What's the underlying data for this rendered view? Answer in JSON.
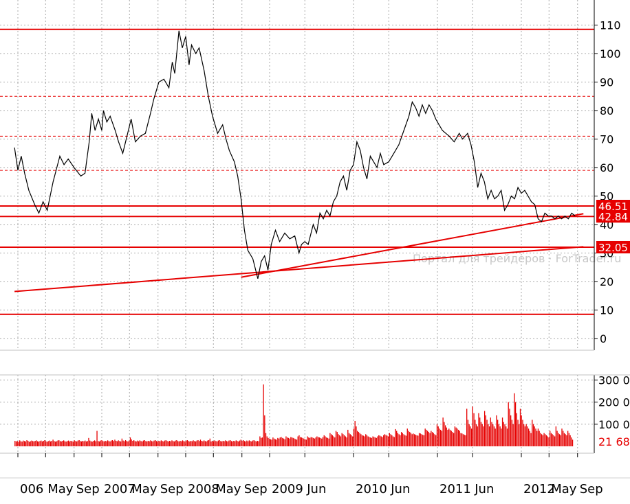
{
  "chart_data": {
    "type": "line",
    "title": "",
    "xlabel": "",
    "ylabel": "",
    "ylim": [
      -2,
      114
    ],
    "yticks": [
      0,
      10,
      20,
      30,
      40,
      50,
      60,
      70,
      80,
      90,
      100,
      110
    ],
    "x_tick_labels": [
      {
        "t": 0.0,
        "label": "006"
      },
      {
        "t": 0.33,
        "label": "May"
      },
      {
        "t": 0.67,
        "label": "Sep"
      },
      {
        "t": 1.0,
        "label": "2007"
      },
      {
        "t": 1.33,
        "label": "May"
      },
      {
        "t": 1.67,
        "label": "Sep"
      },
      {
        "t": 2.0,
        "label": "2008"
      },
      {
        "t": 2.33,
        "label": "May"
      },
      {
        "t": 2.67,
        "label": "Sep"
      },
      {
        "t": 3.0,
        "label": "2009"
      },
      {
        "t": 3.42,
        "label": "Jun"
      },
      {
        "t": 4.0,
        "label": "2010"
      },
      {
        "t": 4.42,
        "label": "Jun"
      },
      {
        "t": 5.0,
        "label": "2011"
      },
      {
        "t": 5.42,
        "label": "Jun"
      },
      {
        "t": 6.0,
        "label": "2012"
      },
      {
        "t": 6.33,
        "label": "May"
      },
      {
        "t": 6.67,
        "label": "Sep"
      }
    ],
    "price_series": {
      "name": "",
      "points": [
        [
          -0.04,
          67
        ],
        [
          0.0,
          59
        ],
        [
          0.04,
          64
        ],
        [
          0.08,
          58
        ],
        [
          0.13,
          52
        ],
        [
          0.2,
          47
        ],
        [
          0.25,
          44
        ],
        [
          0.3,
          48
        ],
        [
          0.35,
          45
        ],
        [
          0.42,
          55
        ],
        [
          0.5,
          64
        ],
        [
          0.55,
          61
        ],
        [
          0.6,
          63
        ],
        [
          0.67,
          60
        ],
        [
          0.75,
          57
        ],
        [
          0.8,
          58
        ],
        [
          0.85,
          69
        ],
        [
          0.88,
          79
        ],
        [
          0.92,
          73
        ],
        [
          0.96,
          77
        ],
        [
          1.0,
          73
        ],
        [
          1.02,
          80
        ],
        [
          1.06,
          76
        ],
        [
          1.1,
          78
        ],
        [
          1.16,
          73
        ],
        [
          1.2,
          69
        ],
        [
          1.25,
          65
        ],
        [
          1.3,
          71
        ],
        [
          1.35,
          77
        ],
        [
          1.4,
          69
        ],
        [
          1.46,
          71
        ],
        [
          1.52,
          72
        ],
        [
          1.58,
          79
        ],
        [
          1.62,
          84
        ],
        [
          1.68,
          90
        ],
        [
          1.74,
          91
        ],
        [
          1.8,
          88
        ],
        [
          1.84,
          97
        ],
        [
          1.87,
          93
        ],
        [
          1.92,
          108
        ],
        [
          1.96,
          102
        ],
        [
          2.0,
          106
        ],
        [
          2.04,
          96
        ],
        [
          2.07,
          103
        ],
        [
          2.12,
          100
        ],
        [
          2.16,
          102
        ],
        [
          2.22,
          94
        ],
        [
          2.27,
          85
        ],
        [
          2.32,
          78
        ],
        [
          2.38,
          72
        ],
        [
          2.44,
          75
        ],
        [
          2.48,
          70
        ],
        [
          2.52,
          66
        ],
        [
          2.58,
          62
        ],
        [
          2.62,
          57
        ],
        [
          2.66,
          49
        ],
        [
          2.7,
          38
        ],
        [
          2.74,
          31
        ],
        [
          2.8,
          28
        ],
        [
          2.86,
          21
        ],
        [
          2.9,
          27
        ],
        [
          2.94,
          29
        ],
        [
          2.98,
          24
        ],
        [
          3.02,
          33
        ],
        [
          3.07,
          38
        ],
        [
          3.12,
          34
        ],
        [
          3.18,
          37
        ],
        [
          3.24,
          35
        ],
        [
          3.3,
          36
        ],
        [
          3.35,
          30
        ],
        [
          3.38,
          33
        ],
        [
          3.42,
          34
        ],
        [
          3.46,
          33
        ],
        [
          3.52,
          40
        ],
        [
          3.56,
          37
        ],
        [
          3.6,
          44
        ],
        [
          3.64,
          42
        ],
        [
          3.68,
          45
        ],
        [
          3.72,
          43
        ],
        [
          3.76,
          48
        ],
        [
          3.8,
          50
        ],
        [
          3.84,
          55
        ],
        [
          3.88,
          57
        ],
        [
          3.92,
          52
        ],
        [
          3.96,
          59
        ],
        [
          4.0,
          61
        ],
        [
          4.04,
          69
        ],
        [
          4.08,
          66
        ],
        [
          4.12,
          60
        ],
        [
          4.16,
          56
        ],
        [
          4.2,
          64
        ],
        [
          4.24,
          62
        ],
        [
          4.28,
          60
        ],
        [
          4.32,
          65
        ],
        [
          4.36,
          61
        ],
        [
          4.42,
          62
        ],
        [
          4.48,
          65
        ],
        [
          4.54,
          68
        ],
        [
          4.6,
          73
        ],
        [
          4.66,
          78
        ],
        [
          4.7,
          83
        ],
        [
          4.74,
          81
        ],
        [
          4.78,
          78
        ],
        [
          4.82,
          82
        ],
        [
          4.86,
          79
        ],
        [
          4.9,
          82
        ],
        [
          4.94,
          80
        ],
        [
          4.98,
          77
        ],
        [
          5.02,
          75
        ],
        [
          5.06,
          73
        ],
        [
          5.1,
          72
        ],
        [
          5.14,
          71
        ],
        [
          5.2,
          69
        ],
        [
          5.26,
          72
        ],
        [
          5.3,
          70
        ],
        [
          5.36,
          72
        ],
        [
          5.4,
          68
        ],
        [
          5.44,
          62
        ],
        [
          5.48,
          53
        ],
        [
          5.52,
          58
        ],
        [
          5.56,
          55
        ],
        [
          5.6,
          49
        ],
        [
          5.64,
          52
        ],
        [
          5.68,
          49
        ],
        [
          5.72,
          50
        ],
        [
          5.76,
          52
        ],
        [
          5.8,
          45
        ],
        [
          5.84,
          47
        ],
        [
          5.88,
          50
        ],
        [
          5.92,
          49
        ],
        [
          5.96,
          53
        ],
        [
          6.0,
          51
        ],
        [
          6.04,
          52
        ],
        [
          6.08,
          50
        ],
        [
          6.12,
          48
        ],
        [
          6.16,
          47
        ],
        [
          6.2,
          42
        ],
        [
          6.24,
          41
        ],
        [
          6.28,
          44
        ],
        [
          6.32,
          43
        ],
        [
          6.36,
          43
        ],
        [
          6.4,
          42
        ],
        [
          6.44,
          43
        ],
        [
          6.48,
          42
        ],
        [
          6.52,
          43
        ],
        [
          6.56,
          42
        ],
        [
          6.6,
          44
        ],
        [
          6.64,
          43
        ]
      ]
    },
    "horizontal_levels": [
      {
        "value": 108.5,
        "style": "solid"
      },
      {
        "value": 85,
        "style": "dashed"
      },
      {
        "value": 71,
        "style": "dashed"
      },
      {
        "value": 59,
        "style": "dashed"
      },
      {
        "value": 46.51,
        "style": "solid",
        "label": "46.51"
      },
      {
        "value": 42.84,
        "style": "solid",
        "label": "42.84"
      },
      {
        "value": 32.05,
        "style": "solid",
        "label": "32.05"
      },
      {
        "value": 8.5,
        "style": "solid"
      }
    ],
    "trend_lines": [
      {
        "from": [
          -0.04,
          16.5
        ],
        "to": [
          6.74,
          32.2
        ]
      },
      {
        "from": [
          2.66,
          21.5
        ],
        "to": [
          6.74,
          43.8
        ]
      }
    ],
    "watermark": "Портал для трейдеров · ForTrader.ru",
    "volume": {
      "type": "bar",
      "ylim": [
        0,
        330
      ],
      "ticks": [
        {
          "value": 300,
          "label": "300 0"
        },
        {
          "value": 200,
          "label": "200 0"
        },
        {
          "value": 100,
          "label": "100 0"
        }
      ],
      "last_value_label": "21 68",
      "last_value": 21.68,
      "t_start": -0.04,
      "t_end": 6.62,
      "values": [
        25,
        22,
        24,
        20,
        27,
        23,
        21,
        26,
        24,
        22,
        28,
        25,
        20,
        23,
        26,
        24,
        22,
        25,
        27,
        23,
        21,
        24,
        26,
        22,
        25,
        28,
        23,
        20,
        24,
        26,
        22,
        25,
        30,
        24,
        21,
        23,
        26,
        28,
        24,
        22,
        25,
        27,
        23,
        21,
        24,
        26,
        22,
        25,
        23,
        21,
        27,
        24,
        22,
        26,
        28,
        24,
        22,
        25,
        23,
        26,
        22,
        24,
        38,
        26,
        23,
        21,
        25,
        27,
        23,
        70,
        24,
        22,
        26,
        28,
        24,
        22,
        25,
        23,
        27,
        24,
        22,
        26,
        28,
        24,
        30,
        25,
        23,
        27,
        24,
        22,
        35,
        26,
        23,
        28,
        24,
        22,
        26,
        40,
        31,
        25,
        28,
        24,
        22,
        26,
        23,
        27,
        24,
        22,
        26,
        28,
        24,
        22,
        25,
        23,
        27,
        24,
        22,
        26,
        28,
        24,
        22,
        25,
        23,
        27,
        24,
        22,
        26,
        28,
        24,
        22,
        25,
        23,
        27,
        24,
        22,
        26,
        28,
        24,
        22,
        25,
        23,
        27,
        24,
        22,
        26,
        28,
        24,
        22,
        25,
        23,
        27,
        24,
        22,
        26,
        28,
        24,
        30,
        25,
        23,
        27,
        24,
        22,
        26,
        28,
        35,
        22,
        25,
        23,
        27,
        24,
        22,
        26,
        28,
        24,
        22,
        25,
        23,
        27,
        24,
        22,
        26,
        28,
        24,
        22,
        25,
        23,
        27,
        24,
        22,
        26,
        30,
        25,
        28,
        24,
        22,
        26,
        23,
        27,
        24,
        22,
        26,
        28,
        24,
        22,
        25,
        23,
        45,
        38,
        40,
        280,
        140,
        60,
        45,
        38,
        35,
        32,
        30,
        40,
        35,
        32,
        30,
        38,
        35,
        40,
        42,
        38,
        35,
        32,
        45,
        40,
        38,
        35,
        42,
        40,
        38,
        35,
        33,
        30,
        45,
        50,
        42,
        40,
        38,
        35,
        32,
        30,
        45,
        40,
        38,
        42,
        40,
        38,
        35,
        40,
        45,
        42,
        40,
        38,
        35,
        42,
        50,
        45,
        40,
        38,
        35,
        60,
        55,
        50,
        45,
        40,
        70,
        65,
        55,
        50,
        45,
        60,
        55,
        50,
        45,
        40,
        75,
        60,
        55,
        50,
        45,
        80,
        115,
        90,
        70,
        65,
        60,
        55,
        50,
        48,
        45,
        55,
        50,
        45,
        42,
        40,
        38,
        45,
        42,
        40,
        38,
        45,
        50,
        48,
        45,
        42,
        50,
        55,
        52,
        48,
        45,
        60,
        55,
        50,
        45,
        42,
        78,
        70,
        60,
        55,
        50,
        65,
        60,
        55,
        50,
        48,
        80,
        70,
        65,
        60,
        55,
        58,
        55,
        52,
        50,
        48,
        60,
        58,
        55,
        52,
        50,
        80,
        75,
        70,
        65,
        60,
        70,
        65,
        60,
        55,
        50,
        100,
        90,
        80,
        75,
        70,
        130,
        110,
        95,
        85,
        75,
        80,
        75,
        70,
        65,
        60,
        90,
        85,
        80,
        75,
        70,
        60,
        58,
        55,
        52,
        50,
        170,
        120,
        100,
        90,
        80,
        180,
        150,
        120,
        100,
        90,
        150,
        130,
        110,
        100,
        90,
        160,
        140,
        120,
        100,
        90,
        130,
        110,
        100,
        90,
        80,
        140,
        120,
        100,
        90,
        80,
        130,
        110,
        100,
        90,
        80,
        200,
        170,
        140,
        120,
        100,
        240,
        200,
        150,
        120,
        100,
        170,
        140,
        120,
        100,
        90,
        100,
        90,
        80,
        70,
        60,
        120,
        100,
        90,
        80,
        70,
        80,
        70,
        60,
        55,
        50,
        60,
        55,
        50,
        45,
        40,
        70,
        60,
        55,
        50,
        45,
        90,
        70,
        60,
        55,
        50,
        80,
        70,
        60,
        55,
        50,
        70,
        60,
        50,
        40,
        30
      ]
    }
  }
}
